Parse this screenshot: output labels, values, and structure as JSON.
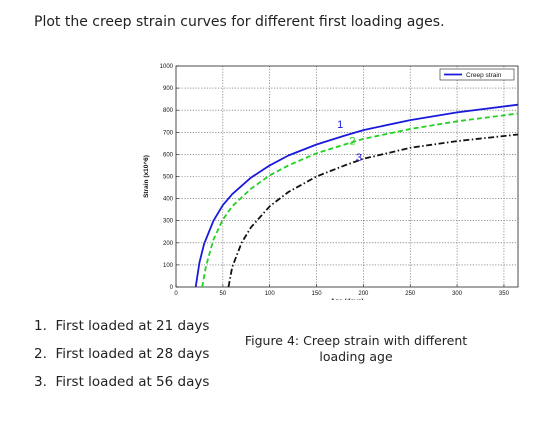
{
  "heading": "Plot the creep strain curves for different first loading ages.",
  "list_items": [
    "First loaded at 21 days",
    "First loaded at 28 days",
    "First loaded at 56 days"
  ],
  "caption": {
    "line1": "Figure 4: Creep strain with different",
    "line2": "loading age"
  },
  "chart_data": {
    "type": "line",
    "xlabel": "Age (days)",
    "ylabel": "Strain (x10^6)",
    "xlim": [
      0,
      365
    ],
    "ylim": [
      0,
      1000
    ],
    "xticks": [
      0,
      50,
      100,
      150,
      200,
      250,
      300,
      350
    ],
    "yticks": [
      0,
      100,
      200,
      300,
      400,
      500,
      600,
      700,
      800,
      900,
      1000
    ],
    "grid": true,
    "legend": {
      "entries": [
        "Creep strain"
      ],
      "position": "top-right"
    },
    "series": [
      {
        "name": "Creep strain",
        "curve_label": "1",
        "color": "#1a1adc",
        "style": "solid",
        "x": [
          21,
          25,
          30,
          40,
          50,
          60,
          80,
          100,
          120,
          150,
          180,
          200,
          250,
          300,
          365
        ],
        "y": [
          0,
          110,
          195,
          300,
          370,
          420,
          495,
          550,
          595,
          645,
          685,
          710,
          755,
          790,
          825
        ]
      },
      {
        "curve_label": "2",
        "color": "#22d022",
        "style": "dashed",
        "x": [
          28,
          32,
          40,
          50,
          60,
          80,
          100,
          120,
          150,
          180,
          200,
          250,
          300,
          365
        ],
        "y": [
          0,
          95,
          215,
          305,
          365,
          445,
          505,
          550,
          605,
          645,
          670,
          715,
          750,
          785
        ]
      },
      {
        "curve_label": "3",
        "color": "#111111",
        "style": "dash-dot",
        "x": [
          56,
          60,
          70,
          80,
          100,
          120,
          150,
          180,
          200,
          250,
          300,
          365
        ],
        "y": [
          0,
          90,
          200,
          270,
          365,
          430,
          500,
          550,
          580,
          630,
          660,
          690
        ]
      }
    ]
  }
}
